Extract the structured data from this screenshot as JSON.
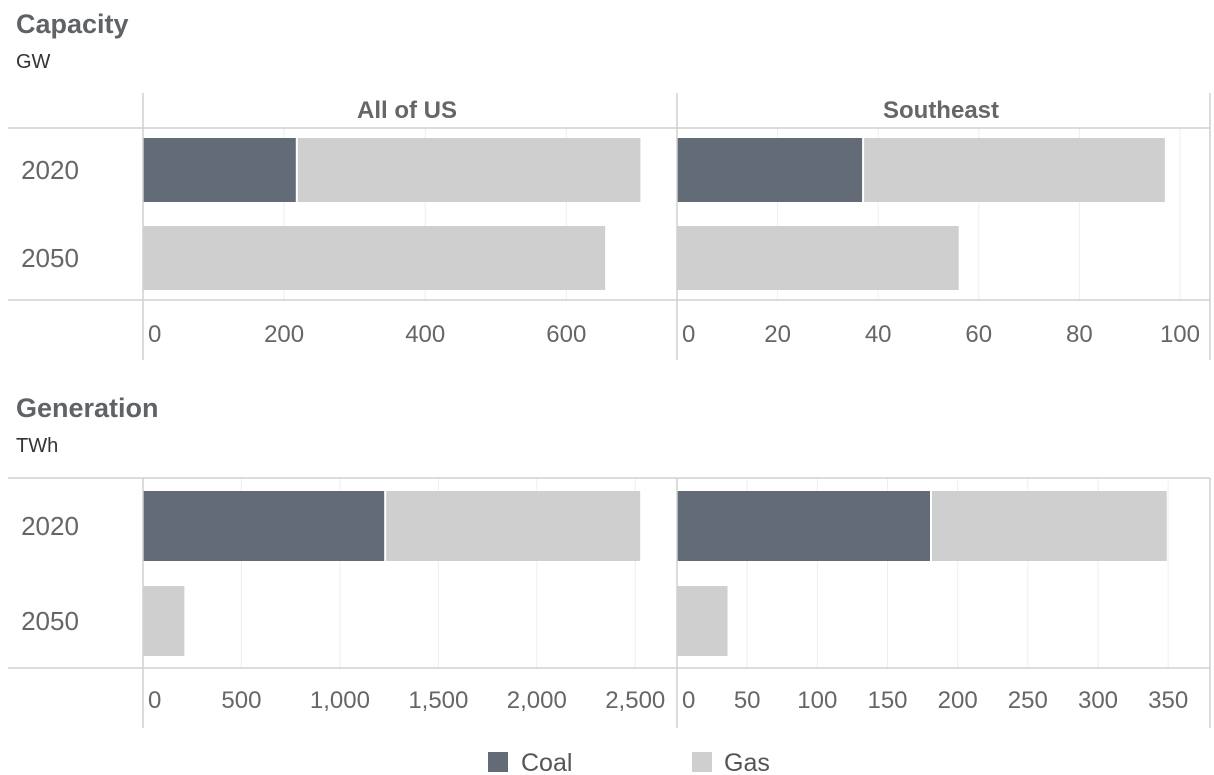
{
  "chart_data": [
    {
      "type": "bar",
      "orientation": "horizontal",
      "stacked": true,
      "title": "Capacity",
      "unit": "GW",
      "categories": [
        "2020",
        "2050"
      ],
      "facets": [
        {
          "name": "All of US",
          "xlim": [
            0,
            720
          ],
          "ticks": [
            0,
            200,
            400,
            600
          ],
          "tick_labels": [
            "0",
            "200",
            "400",
            "600"
          ],
          "series": [
            {
              "name": "Coal",
              "values": [
                218,
                0
              ]
            },
            {
              "name": "Gas",
              "values": [
                487,
                655
              ]
            }
          ]
        },
        {
          "name": "Southeast",
          "xlim": [
            0,
            101
          ],
          "ticks": [
            0,
            20,
            40,
            60,
            80,
            100
          ],
          "tick_labels": [
            "0",
            "20",
            "40",
            "60",
            "80",
            "100"
          ],
          "series": [
            {
              "name": "Coal",
              "values": [
                37,
                0
              ]
            },
            {
              "name": "Gas",
              "values": [
                60,
                56
              ]
            }
          ]
        }
      ]
    },
    {
      "type": "bar",
      "orientation": "horizontal",
      "stacked": true,
      "title": "Generation",
      "unit": "TWh",
      "categories": [
        "2020",
        "2050"
      ],
      "facets": [
        {
          "name": "",
          "xlim": [
            0,
            2580
          ],
          "ticks": [
            0,
            500,
            1000,
            1500,
            2000,
            2500
          ],
          "tick_labels": [
            "0",
            "500",
            "1,000",
            "1,500",
            "2,000",
            "2,500"
          ],
          "series": [
            {
              "name": "Coal",
              "values": [
                1230,
                0
              ]
            },
            {
              "name": "Gas",
              "values": [
                1295,
                210
              ]
            }
          ]
        },
        {
          "name": "",
          "xlim": [
            0,
            362
          ],
          "ticks": [
            0,
            50,
            100,
            150,
            200,
            250,
            300,
            350
          ],
          "tick_labels": [
            "0",
            "50",
            "100",
            "150",
            "200",
            "250",
            "300",
            "350"
          ],
          "series": [
            {
              "name": "Coal",
              "values": [
                181,
                0
              ]
            },
            {
              "name": "Gas",
              "values": [
                168,
                36
              ]
            }
          ]
        }
      ]
    }
  ],
  "legend": {
    "placement": "bottom",
    "items": [
      {
        "name": "Coal",
        "color": "#636c76"
      },
      {
        "name": "Gas",
        "color": "#cfcfcf"
      }
    ]
  },
  "colors": {
    "Coal": "#636c76",
    "Gas": "#cfcfcf",
    "grid": "#eeeeee",
    "axis": "#d0d0d0"
  }
}
